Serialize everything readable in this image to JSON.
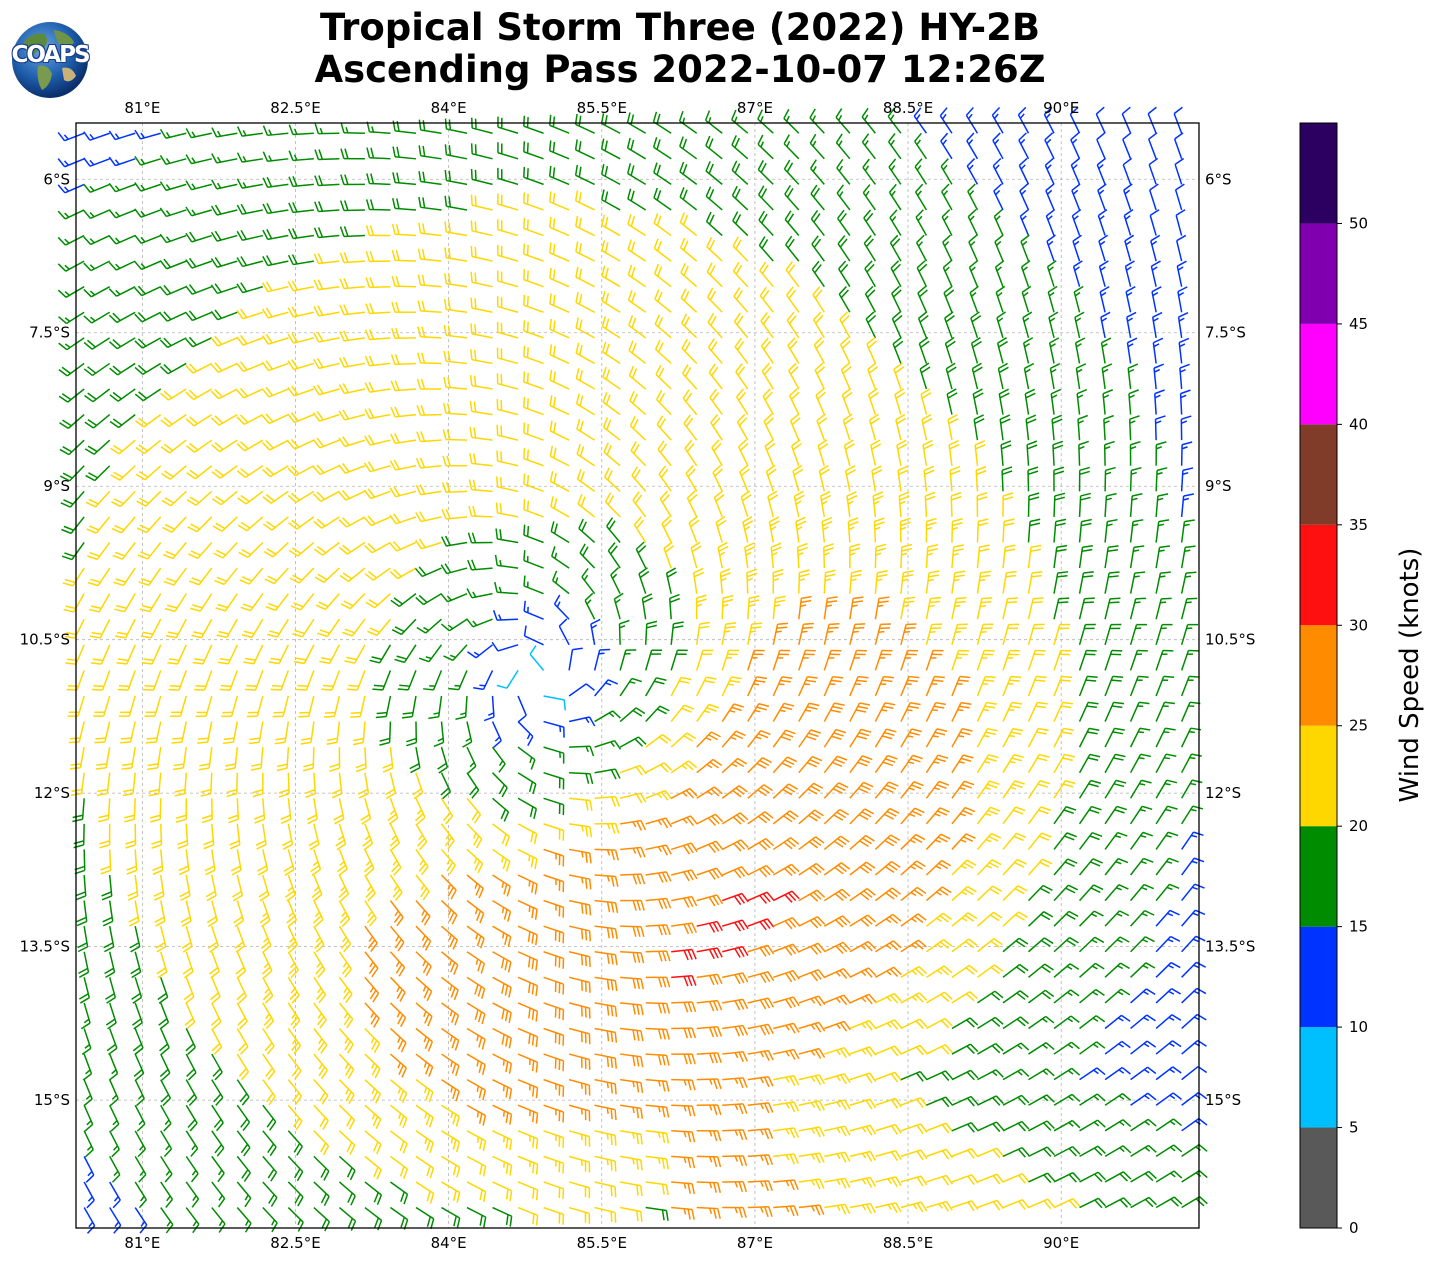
{
  "title": {
    "line1": "Tropical Storm Three (2022) HY-2B",
    "line2": "Ascending Pass 2022-10-07 12:26Z"
  },
  "logo": {
    "text": "COAPS",
    "icon": "globe-logo-icon"
  },
  "map": {
    "lon_range": [
      80.35,
      91.35
    ],
    "lat_range": [
      -16.25,
      -5.45
    ],
    "lon_ticks": [
      {
        "value": 81,
        "label": "81°E"
      },
      {
        "value": 82.5,
        "label": "82.5°E"
      },
      {
        "value": 84,
        "label": "84°E"
      },
      {
        "value": 85.5,
        "label": "85.5°E"
      },
      {
        "value": 87,
        "label": "87°E"
      },
      {
        "value": 88.5,
        "label": "88.5°E"
      },
      {
        "value": 90,
        "label": "90°E"
      }
    ],
    "lat_ticks": [
      {
        "value": -6,
        "label": "6°S"
      },
      {
        "value": -7.5,
        "label": "7.5°S"
      },
      {
        "value": -9,
        "label": "9°S"
      },
      {
        "value": -10.5,
        "label": "10.5°S"
      },
      {
        "value": -12,
        "label": "12°S"
      },
      {
        "value": -13.5,
        "label": "13.5°S"
      },
      {
        "value": -15,
        "label": "15°S"
      }
    ],
    "grid": true,
    "storm_center": {
      "lon": 84.9,
      "lat": -10.85
    },
    "barb_spacing_deg": 0.25
  },
  "colorbar": {
    "label": "Wind Speed (knots)",
    "bins": [
      {
        "min": 0,
        "max": 5,
        "color": "#595959"
      },
      {
        "min": 5,
        "max": 10,
        "color": "#00bfff"
      },
      {
        "min": 10,
        "max": 15,
        "color": "#0033ff"
      },
      {
        "min": 15,
        "max": 20,
        "color": "#008c00"
      },
      {
        "min": 20,
        "max": 25,
        "color": "#ffd700"
      },
      {
        "min": 25,
        "max": 30,
        "color": "#ff8c00"
      },
      {
        "min": 30,
        "max": 35,
        "color": "#ff1010"
      },
      {
        "min": 35,
        "max": 40,
        "color": "#803c28"
      },
      {
        "min": 40,
        "max": 45,
        "color": "#ff00ff"
      },
      {
        "min": 45,
        "max": 50,
        "color": "#8000b0"
      },
      {
        "min": 50,
        "max": 55,
        "color": "#2b0060"
      }
    ],
    "tick_labels": [
      "0",
      "5",
      "10",
      "15",
      "20",
      "25",
      "30",
      "35",
      "40",
      "45",
      "50"
    ]
  }
}
